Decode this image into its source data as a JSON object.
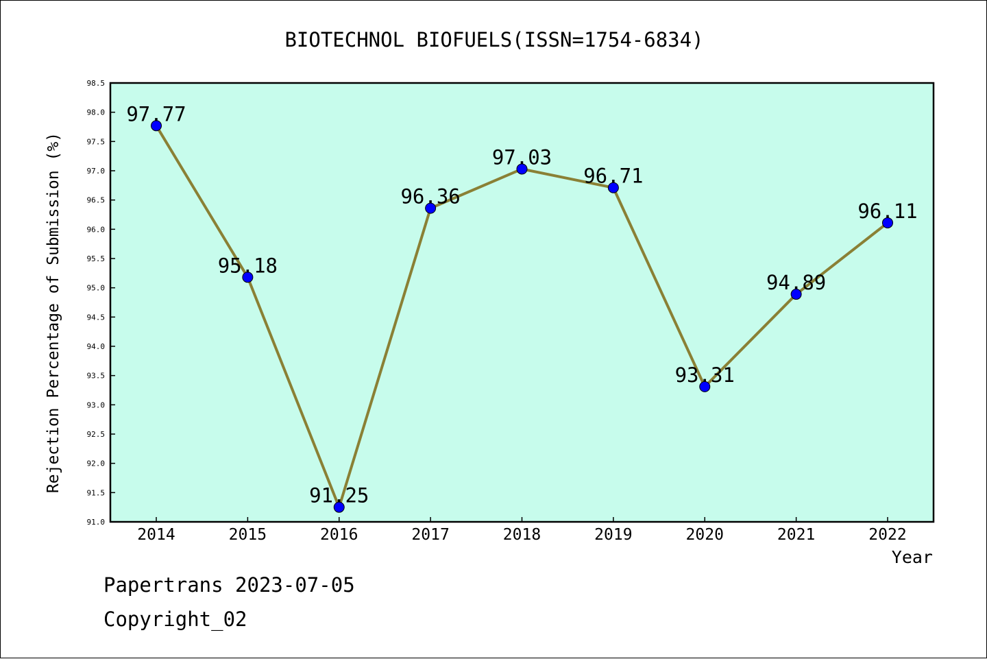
{
  "chart_data": {
    "type": "line",
    "title": "BIOTECHNOL BIOFUELS(ISSN=1754-6834)",
    "xlabel": "Year",
    "ylabel": "Rejection Percentage of Submission (%)",
    "categories": [
      "2014",
      "2015",
      "2016",
      "2017",
      "2018",
      "2019",
      "2020",
      "2021",
      "2022"
    ],
    "series": [
      {
        "values": [
          97.77,
          95.18,
          91.25,
          96.36,
          97.03,
          96.71,
          93.31,
          94.89,
          96.11
        ],
        "labels": [
          "97.77",
          "95.18",
          "91.25",
          "96.36",
          "97.03",
          "96.71",
          "93.31",
          "94.89",
          "96.11"
        ]
      }
    ],
    "ylim": [
      91.0,
      98.5
    ],
    "yticks": [
      "91.0",
      "91.5",
      "92.0",
      "92.5",
      "93.0",
      "93.5",
      "94.0",
      "94.5",
      "95.0",
      "95.5",
      "96.0",
      "96.5",
      "97.0",
      "97.5",
      "98.0",
      "98.5"
    ],
    "grid": false,
    "colors": {
      "plot_background": "#c7fcec",
      "line": "#8a8035",
      "marker": "#0000ff"
    }
  },
  "footer": {
    "line1": "Papertrans 2023-07-05",
    "line2": "Copyright_02"
  }
}
